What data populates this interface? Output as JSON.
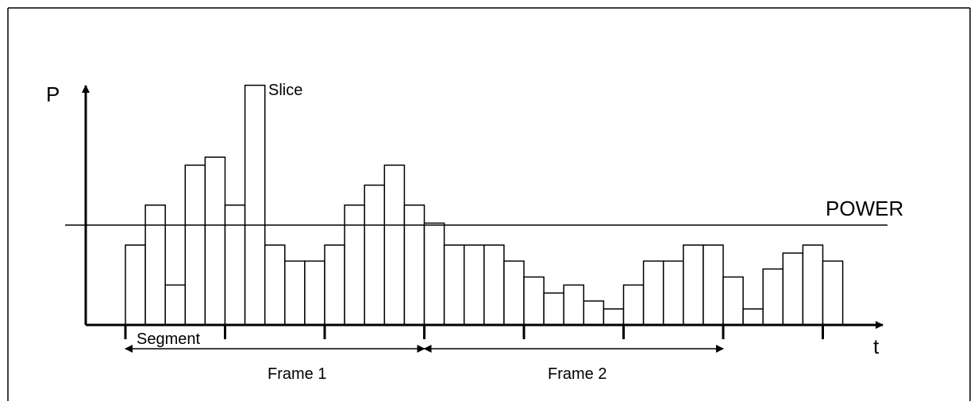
{
  "labels": {
    "y_axis": "P",
    "x_axis": "t",
    "slice": "Slice",
    "power": "POWER",
    "segment": "Segment",
    "frame1": "Frame 1",
    "frame2": "Frame 2"
  },
  "chart_data": {
    "type": "bar",
    "ylabel": "P",
    "xlabel": "t",
    "ylim": [
      0,
      12
    ],
    "threshold": {
      "name": "POWER",
      "value": 5
    },
    "values": [
      4,
      6,
      2,
      8,
      8.4,
      6,
      12,
      4,
      3.2,
      3.2,
      4,
      6,
      7,
      8,
      6,
      5.1,
      4,
      4,
      4,
      3.2,
      2.4,
      1.6,
      2,
      1.2,
      0.8,
      2,
      3.2,
      3.2,
      4,
      4,
      2.4,
      0.8,
      2.8,
      3.6,
      4,
      3.2
    ],
    "ticks_every_slices": 5,
    "segment_slices": 5,
    "frames": [
      {
        "label": "Frame 1",
        "start_slice": 0,
        "end_slice": 15
      },
      {
        "label": "Frame 2",
        "start_slice": 15,
        "end_slice": 30
      }
    ]
  }
}
